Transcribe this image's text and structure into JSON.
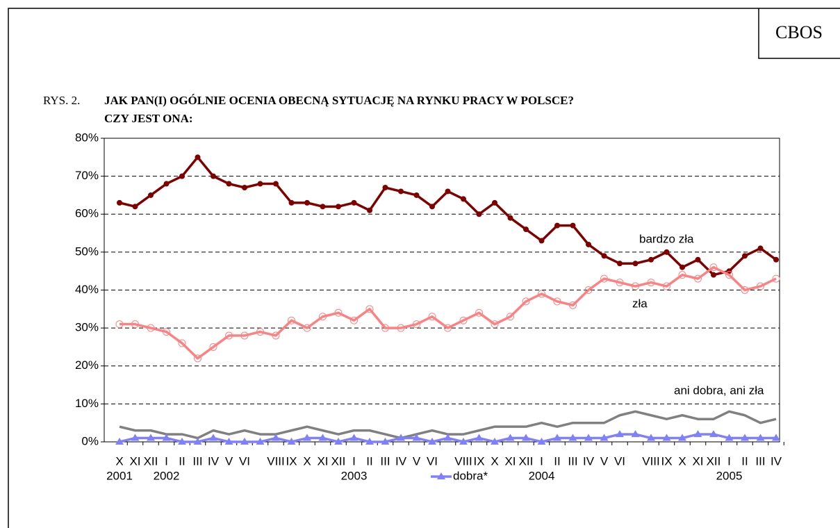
{
  "header": "CBOS",
  "chart_data": {
    "type": "line",
    "figure_label": "RYS. 2.",
    "title": [
      "JAK PAN(I) OGÓLNIE OCENIA OBECNĄ SYTUACJĘ NA RYNKU PRACY W POLSCE?",
      "CZY JEST ONA:"
    ],
    "categories": [
      "X",
      "XI",
      "XII",
      "I",
      "II",
      "III",
      "IV",
      "V",
      "VI",
      null,
      "VIII",
      "IX",
      "X",
      "XI",
      "XII",
      "I",
      "II",
      "III",
      "IV",
      "V",
      "VI",
      null,
      "VIII",
      "IX",
      "X",
      "XI",
      "XII",
      "I",
      "II",
      "III",
      "IV",
      "V",
      "VI",
      null,
      "VIII",
      "IX",
      "X",
      "XI",
      "XII",
      "I",
      "II",
      "III",
      "IV"
    ],
    "years": [
      "2001",
      null,
      null,
      "2002",
      null,
      null,
      null,
      null,
      null,
      null,
      null,
      null,
      null,
      null,
      null,
      "2003",
      null,
      null,
      null,
      null,
      null,
      null,
      null,
      null,
      null,
      null,
      null,
      "2004",
      null,
      null,
      null,
      null,
      null,
      null,
      null,
      null,
      null,
      null,
      null,
      "2005",
      null,
      null,
      null
    ],
    "ylim": [
      0,
      80
    ],
    "yticks": [
      {
        "value": 0,
        "label": "0%"
      },
      {
        "value": 10,
        "label": "10%"
      },
      {
        "value": 20,
        "label": "20%"
      },
      {
        "value": 30,
        "label": "30%"
      },
      {
        "value": 40,
        "label": "40%"
      },
      {
        "value": 50,
        "label": "50%"
      },
      {
        "value": 60,
        "label": "60%"
      },
      {
        "value": 70,
        "label": "70%"
      },
      {
        "value": 80,
        "label": "80%"
      }
    ],
    "grid": true,
    "series": [
      {
        "name": "bardzo zła",
        "color": "#800000",
        "marker": "filled-circle",
        "direct_label": true,
        "values": [
          63,
          62,
          65,
          68,
          70,
          75,
          70,
          68,
          67,
          68,
          68,
          63,
          63,
          62,
          62,
          63,
          61,
          67,
          66,
          65,
          62,
          66,
          64,
          60,
          63,
          59,
          56,
          53,
          57,
          57,
          52,
          49,
          47,
          47,
          48,
          50,
          46,
          48,
          44,
          45,
          49,
          51,
          48
        ]
      },
      {
        "name": "zła",
        "color": "#ff8080",
        "marker": "hollow-circle",
        "direct_label": true,
        "values": [
          31,
          31,
          30,
          29,
          26,
          22,
          25,
          28,
          28,
          29,
          28,
          32,
          30,
          33,
          34,
          32,
          35,
          30,
          30,
          31,
          33,
          30,
          32,
          34,
          31,
          33,
          37,
          39,
          37,
          36,
          40,
          43,
          42,
          41,
          42,
          41,
          44,
          43,
          46,
          44,
          40,
          41,
          43
        ]
      },
      {
        "name": "ani dobra, ani zła",
        "color": "#808080",
        "marker": "none",
        "direct_label": true,
        "values": [
          4,
          3,
          3,
          2,
          2,
          1,
          3,
          2,
          3,
          2,
          2,
          3,
          4,
          3,
          2,
          3,
          3,
          2,
          1,
          2,
          3,
          2,
          2,
          3,
          4,
          4,
          4,
          5,
          4,
          5,
          5,
          5,
          7,
          8,
          7,
          6,
          7,
          6,
          6,
          8,
          7,
          5,
          6
        ]
      },
      {
        "name": "dobra*",
        "color": "#8080ff",
        "marker": "triangle",
        "direct_label": false,
        "values": [
          0,
          1,
          1,
          1,
          0,
          0,
          1,
          0,
          0,
          0,
          1,
          0,
          1,
          1,
          0,
          1,
          0,
          0,
          1,
          1,
          0,
          1,
          0,
          1,
          0,
          1,
          1,
          0,
          1,
          1,
          1,
          1,
          2,
          2,
          1,
          1,
          1,
          2,
          2,
          1,
          1,
          1,
          1
        ]
      }
    ],
    "legend": "bottom"
  }
}
